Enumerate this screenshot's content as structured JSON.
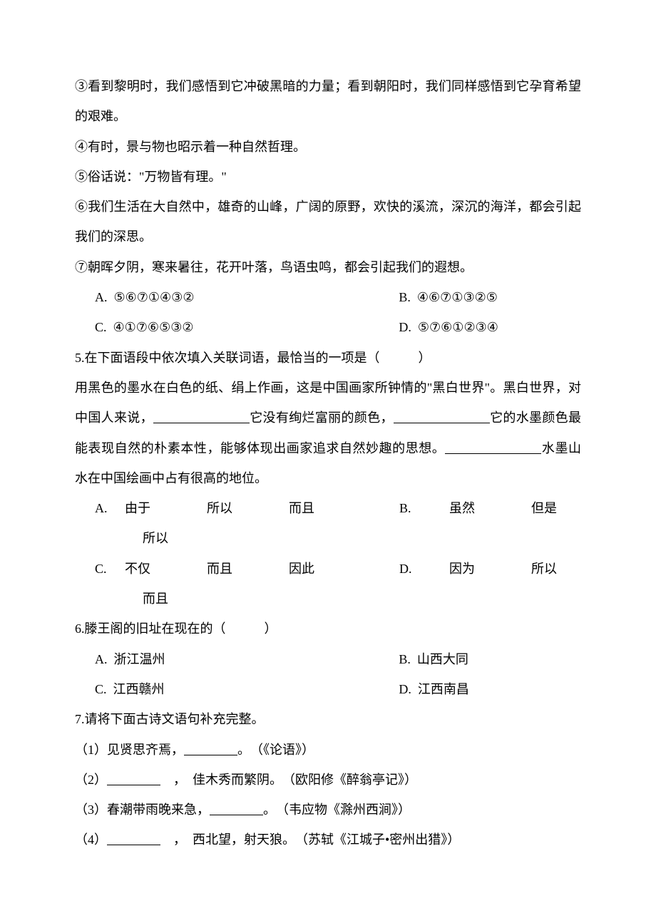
{
  "q4": {
    "line3": "③看到黎明时，我们感悟到它冲破黑暗的力量；看到朝阳时，我们同样感悟到它孕育希望的艰难。",
    "line4": "④有时，景与物也昭示着一种自然哲理。",
    "line5": "⑤俗话说：\"万物皆有理。\"",
    "line6": "⑥我们生活在大自然中，雄奇的山峰，广阔的原野，欢快的溪流，深沉的海洋，都会引起我们的深思。",
    "line7": "⑦朝晖夕阴，寒来暑往，花开叶落，鸟语虫鸣，都会引起我们的遐想。",
    "optA_label": "A.",
    "optA_text": "⑤⑥⑦①④③②",
    "optB_label": "B.",
    "optB_text": "④⑥⑦①③②⑤",
    "optC_label": "C.",
    "optC_text": "④①⑦⑥⑤③②",
    "optD_label": "D.",
    "optD_text": "⑤⑦⑥①②③④"
  },
  "q5": {
    "stem": "5.在下面语段中依次填入关联词语，最恰当的一项是（　　　）",
    "body_pre": "用黑色的墨水在白色的纸、绢上作画，这是中国画家所钟情的\"黑白世界\"。黑白世界，对中国人来说，",
    "body_mid1": "它没有绚烂富丽的颜色，",
    "body_mid2": "它的水墨颜色最能表现自然的朴素本性，能够体现出画家追求自然妙趣的思想。",
    "body_end": "水墨山水在中国绘画中占有很高的地位。",
    "A": {
      "label": "A.",
      "w1": "由于",
      "w2": "所以",
      "w3": "而且"
    },
    "B": {
      "label": "B.",
      "w1": "虽然",
      "w2": "但是",
      "w3": "所以"
    },
    "C": {
      "label": "C.",
      "w1": "不仅",
      "w2": "而且",
      "w3": "因此"
    },
    "D": {
      "label": "D.",
      "w1": "因为",
      "w2": "所以",
      "w3": "而且"
    }
  },
  "q6": {
    "stem": "6.滕王阁的旧址在现在的（　　　）",
    "optA_label": "A.",
    "optA_text": "浙江温州",
    "optB_label": "B.",
    "optB_text": "山西大同",
    "optC_label": "C.",
    "optC_text": "江西赣州",
    "optD_label": "D.",
    "optD_text": "江西南昌"
  },
  "q7": {
    "stem": "7.请将下面古诗文语句补充完整。",
    "item1_pre": "（1）见贤思齐焉，",
    "item1_post": "。　（《论语》）",
    "item2_pre": "（2）",
    "item2_post": "　，　佳木秀而繁阴。　（欧阳修《醉翁亭记》）",
    "item3_pre": "（3）春潮带雨晚来急，",
    "item3_post": "。　（韦应物《滁州西涧》）",
    "item4_pre": "（4）",
    "item4_post": "　，　西北望，射天狼。　（苏轼《江城子•密州出猎》）"
  }
}
